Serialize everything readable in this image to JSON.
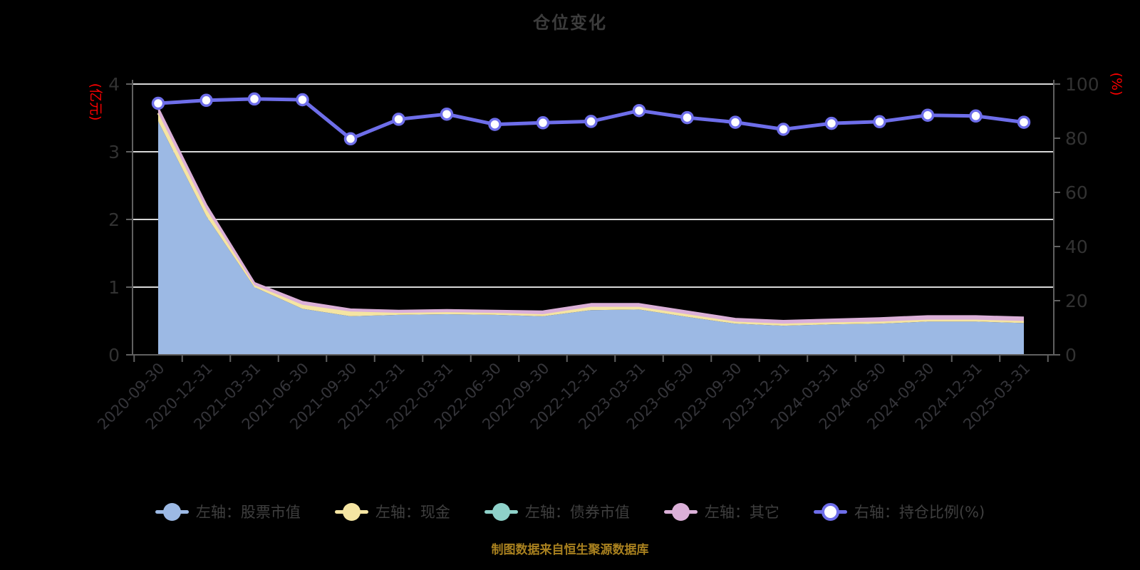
{
  "title": "仓位变化",
  "footer_note": "制图数据来自恒生聚源数据库",
  "colors": {
    "background": "#000000",
    "title_text": "#3c3c3c",
    "axis_line": "#606060",
    "grid_line": "#d7d7d7",
    "tick_label": "#323232",
    "axis_unit_label": "#fe0000",
    "footer_text": "#a9811f",
    "legend_text": "#3f3f3f",
    "stock_area": "#9cb9e4",
    "cash_area": "#f5e5a2",
    "bond_area": "#8ed1c9",
    "other_area": "#dbb0d8",
    "ratio_line": "#6e6eea",
    "marker_fill": "#ffffff"
  },
  "legend": [
    {
      "key": "stock",
      "label": "左轴：股票市值",
      "color": "#9cb9e4",
      "marker": "filled"
    },
    {
      "key": "cash",
      "label": "左轴：现金",
      "color": "#f5e5a2",
      "marker": "filled"
    },
    {
      "key": "bond",
      "label": "左轴：债券市值",
      "color": "#8ed1c9",
      "marker": "filled"
    },
    {
      "key": "other",
      "label": "左轴：其它",
      "color": "#dbb0d8",
      "marker": "filled"
    },
    {
      "key": "ratio",
      "label": "右轴：持仓比例(%)",
      "color": "#6e6eea",
      "marker": "ring"
    }
  ],
  "chart_data": {
    "type": "area",
    "subtype": "stacked-area-with-line",
    "left_axis_unit": "(亿元)",
    "right_axis_unit": "(%)",
    "left_ylim": [
      0,
      4
    ],
    "right_ylim": [
      0,
      100
    ],
    "left_ticks": [
      0,
      1,
      2,
      3,
      4
    ],
    "right_ticks": [
      0,
      20,
      40,
      60,
      80,
      100
    ],
    "grid": true,
    "legend_position": "bottom",
    "categories": [
      "2020-09-30",
      "2020-12-31",
      "2021-03-31",
      "2021-06-30",
      "2021-09-30",
      "2021-12-31",
      "2022-03-31",
      "2022-06-30",
      "2022-09-30",
      "2022-12-31",
      "2023-03-31",
      "2023-06-30",
      "2023-09-30",
      "2023-12-31",
      "2024-03-31",
      "2024-06-30",
      "2024-09-30",
      "2024-12-31",
      "2025-03-31"
    ],
    "series": [
      {
        "key": "stock",
        "name": "左轴：股票市值",
        "axis": "left",
        "type": "area",
        "stack": true,
        "color": "#9cb9e4",
        "values": [
          3.45,
          2.05,
          1.0,
          0.68,
          0.57,
          0.59,
          0.6,
          0.59,
          0.57,
          0.66,
          0.67,
          0.56,
          0.46,
          0.43,
          0.45,
          0.46,
          0.49,
          0.49,
          0.47
        ]
      },
      {
        "key": "cash",
        "name": "左轴：现金",
        "axis": "left",
        "type": "area",
        "stack": true,
        "color": "#f5e5a2",
        "values": [
          0.12,
          0.1,
          0.03,
          0.06,
          0.07,
          0.03,
          0.03,
          0.03,
          0.03,
          0.05,
          0.04,
          0.04,
          0.03,
          0.03,
          0.03,
          0.03,
          0.03,
          0.03,
          0.03
        ]
      },
      {
        "key": "bond",
        "name": "左轴：债券市值",
        "axis": "left",
        "type": "area",
        "stack": true,
        "color": "#8ed1c9",
        "values": [
          0,
          0,
          0,
          0,
          0,
          0,
          0,
          0,
          0,
          0,
          0,
          0,
          0,
          0,
          0,
          0,
          0,
          0,
          0
        ]
      },
      {
        "key": "other",
        "name": "左轴：其它",
        "axis": "left",
        "type": "area",
        "stack": true,
        "color": "#dbb0d8",
        "values": [
          0.07,
          0.06,
          0.03,
          0.04,
          0.03,
          0.03,
          0.03,
          0.03,
          0.04,
          0.04,
          0.04,
          0.04,
          0.04,
          0.04,
          0.04,
          0.05,
          0.05,
          0.05,
          0.05
        ]
      },
      {
        "key": "ratio",
        "name": "右轴：持仓比例(%)",
        "axis": "right",
        "type": "line",
        "stack": false,
        "color": "#6e6eea",
        "values": [
          92.9,
          94.0,
          94.5,
          94.2,
          79.8,
          87.0,
          88.9,
          85.1,
          85.7,
          86.2,
          90.2,
          87.6,
          85.9,
          83.3,
          85.5,
          86.1,
          88.5,
          88.2,
          85.9
        ]
      }
    ]
  }
}
